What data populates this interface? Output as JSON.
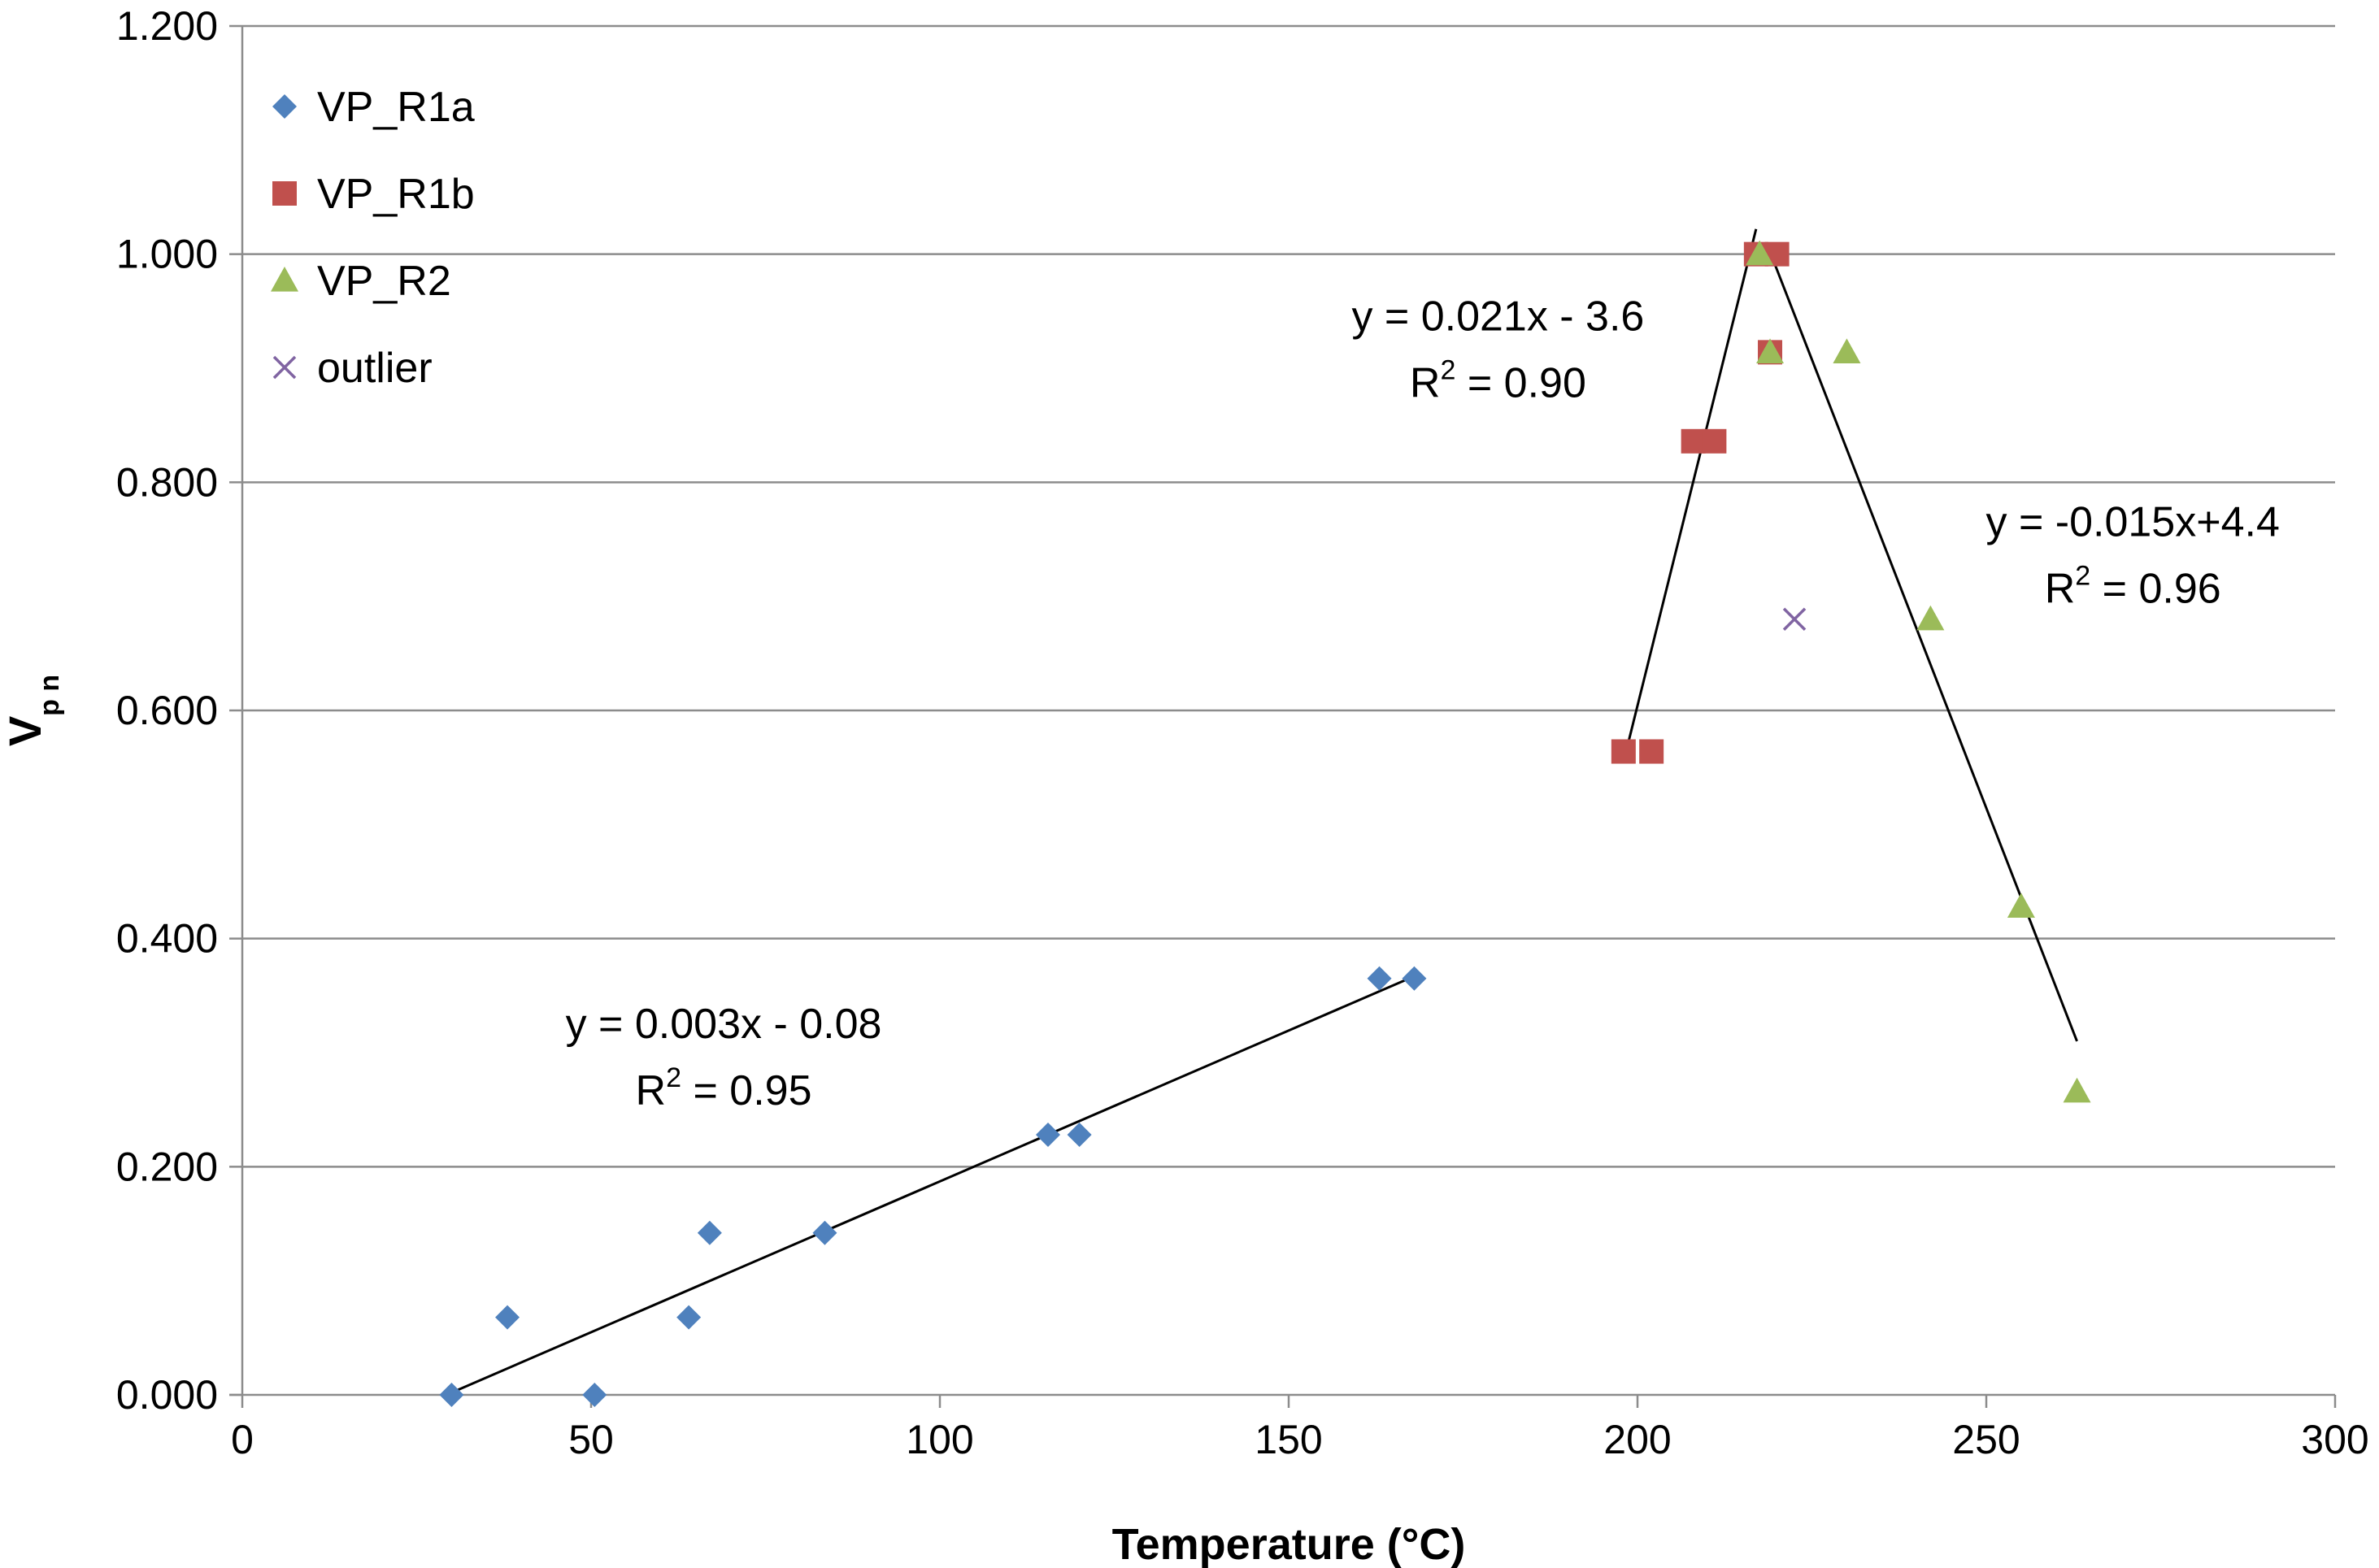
{
  "chart_data": {
    "type": "scatter",
    "title": "",
    "xlabel": "Temperature (°C)",
    "ylabel_main": "V",
    "ylabel_sub": "p n",
    "xlim": [
      0,
      300
    ],
    "ylim": [
      0,
      1.2
    ],
    "x_ticks": [
      0,
      50,
      100,
      150,
      200,
      250,
      300
    ],
    "x_tick_labels": [
      "0",
      "50",
      "100",
      "150",
      "200",
      "250",
      "300"
    ],
    "y_ticks": [
      0,
      0.2,
      0.4,
      0.6,
      0.8,
      1.0,
      1.2
    ],
    "y_tick_labels": [
      "0.000",
      "0.200",
      "0.400",
      "0.600",
      "0.800",
      "1.000",
      "1.200"
    ],
    "grid": "horizontal",
    "legend_position": "top-left",
    "series": [
      {
        "name": "VP_R1a",
        "marker": "diamond",
        "color": "#4f81bd",
        "points": [
          [
            30,
            0.0
          ],
          [
            38,
            0.068
          ],
          [
            50.5,
            0.0
          ],
          [
            64,
            0.068
          ],
          [
            67,
            0.142
          ],
          [
            83.5,
            0.142
          ],
          [
            115.5,
            0.228
          ],
          [
            120,
            0.228
          ],
          [
            163,
            0.365
          ],
          [
            168,
            0.365
          ]
        ]
      },
      {
        "name": "VP_R1b",
        "marker": "square",
        "color": "#c0504d",
        "points": [
          [
            198,
            0.564
          ],
          [
            202,
            0.564
          ],
          [
            208,
            0.836
          ],
          [
            211,
            0.836
          ],
          [
            217,
            1.0
          ],
          [
            220,
            1.0
          ],
          [
            219,
            0.914
          ]
        ]
      },
      {
        "name": "VP_R2",
        "marker": "triangle",
        "color": "#9bbb59",
        "points": [
          [
            217.5,
            1.0
          ],
          [
            219,
            0.914
          ],
          [
            230,
            0.914
          ],
          [
            242,
            0.68
          ],
          [
            255,
            0.428
          ],
          [
            263,
            0.266
          ]
        ]
      },
      {
        "name": "outlier",
        "marker": "x",
        "color": "#8064a2",
        "points": [
          [
            222.5,
            0.68
          ]
        ]
      }
    ],
    "trendlines": [
      {
        "name": "trend-r1a",
        "x1": 30,
        "y1": 0.002,
        "x2": 168,
        "y2": 0.367
      },
      {
        "name": "trend-rise",
        "x1": 198,
        "y1": 0.555,
        "x2": 217,
        "y2": 1.022
      },
      {
        "name": "trend-fall",
        "x1": 219,
        "y1": 1.002,
        "x2": 263,
        "y2": 0.31
      }
    ],
    "annotations": [
      {
        "name": "eq-r1a",
        "eq": "y = 0.003x - 0.08",
        "r2": " = 0.95",
        "x": 69,
        "y": 0.313
      },
      {
        "name": "eq-rise",
        "eq": "y = 0.021x - 3.6",
        "r2": " = 0.90",
        "x": 180,
        "y": 0.933
      },
      {
        "name": "eq-fall",
        "eq": "y = -0.015x+4.4",
        "r2": " = 0.96",
        "x": 271,
        "y": 0.753
      }
    ],
    "r2_label": "R",
    "r2_exponent": "2"
  }
}
